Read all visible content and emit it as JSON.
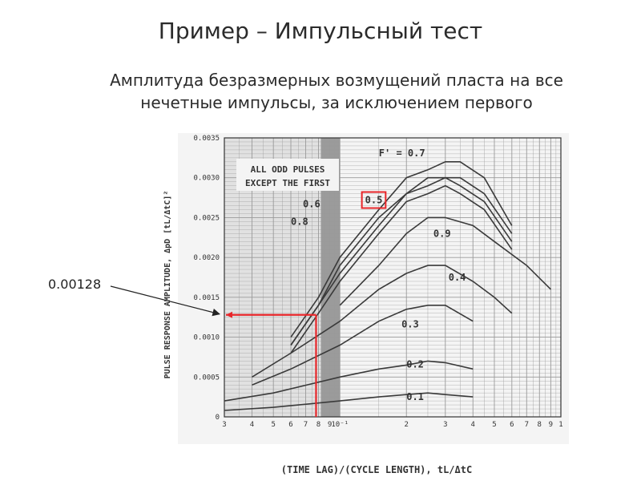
{
  "slide": {
    "title": "Пример – Импульсный тест",
    "subtitle_line1": "Амплитуда безразмерных возмущений пласта на все",
    "subtitle_line2": "нечетные импульсы, за исключением первого"
  },
  "chart_data": {
    "type": "line",
    "x_scale": "log",
    "xlim": [
      0.03,
      1.0
    ],
    "ylim": [
      0,
      0.0035
    ],
    "grid": true,
    "xlabel": "(TIME LAG)/(CYCLE LENGTH), tL/ΔtC",
    "ylabel": "PULSE RESPONSE AMPLITUDE, ΔpD [tL/ΔtC]²",
    "x_tick_labels": [
      "3",
      "4",
      "5",
      "6",
      "7",
      "8",
      "9",
      "10⁻¹",
      "2",
      "3",
      "4",
      "5",
      "6",
      "7",
      "8",
      "9",
      "1"
    ],
    "y_tick_labels": [
      "0",
      "0.0005",
      "0.0010",
      "0.0015",
      "0.0020",
      "0.0025",
      "0.0030",
      "0.0035"
    ],
    "inset_label_line1": "ALL ODD PULSES",
    "inset_label_line2": "EXCEPT THE FIRST",
    "series": [
      {
        "name": "F' = 0.7",
        "x": [
          0.06,
          0.08,
          0.1,
          0.15,
          0.2,
          0.25,
          0.3,
          0.35,
          0.45,
          0.6
        ],
        "y": [
          0.001,
          0.0015,
          0.002,
          0.0026,
          0.003,
          0.0031,
          0.0032,
          0.0032,
          0.003,
          0.0024
        ]
      },
      {
        "name": "0.6",
        "x": [
          0.06,
          0.08,
          0.1,
          0.15,
          0.2,
          0.25,
          0.3,
          0.35,
          0.45,
          0.6
        ],
        "y": [
          0.0009,
          0.0014,
          0.0019,
          0.0025,
          0.0028,
          0.003,
          0.003,
          0.003,
          0.0028,
          0.0023
        ]
      },
      {
        "name": "0.5",
        "x": [
          0.06,
          0.08,
          0.1,
          0.15,
          0.2,
          0.25,
          0.3,
          0.35,
          0.45,
          0.6
        ],
        "y": [
          0.0009,
          0.0014,
          0.0018,
          0.0024,
          0.0028,
          0.0029,
          0.003,
          0.0029,
          0.0027,
          0.0022
        ]
      },
      {
        "name": "0.8",
        "x": [
          0.06,
          0.08,
          0.1,
          0.15,
          0.2,
          0.25,
          0.3,
          0.35,
          0.45,
          0.6
        ],
        "y": [
          0.0008,
          0.0013,
          0.0017,
          0.0023,
          0.0027,
          0.0028,
          0.0029,
          0.0028,
          0.0026,
          0.0021
        ]
      },
      {
        "name": "0.9",
        "x": [
          0.1,
          0.15,
          0.2,
          0.25,
          0.3,
          0.4,
          0.5,
          0.7,
          0.9
        ],
        "y": [
          0.0014,
          0.0019,
          0.0023,
          0.0025,
          0.0025,
          0.0024,
          0.0022,
          0.0019,
          0.0016
        ]
      },
      {
        "name": "0.4",
        "x": [
          0.04,
          0.06,
          0.1,
          0.15,
          0.2,
          0.25,
          0.3,
          0.4,
          0.5,
          0.6
        ],
        "y": [
          0.0005,
          0.0008,
          0.0012,
          0.0016,
          0.0018,
          0.0019,
          0.0019,
          0.0017,
          0.0015,
          0.0013
        ]
      },
      {
        "name": "0.3",
        "x": [
          0.04,
          0.06,
          0.1,
          0.15,
          0.2,
          0.25,
          0.3,
          0.4
        ],
        "y": [
          0.0004,
          0.0006,
          0.0009,
          0.0012,
          0.00135,
          0.0014,
          0.0014,
          0.0012
        ]
      },
      {
        "name": "0.2",
        "x": [
          0.03,
          0.05,
          0.1,
          0.15,
          0.2,
          0.25,
          0.3,
          0.4
        ],
        "y": [
          0.0002,
          0.0003,
          0.0005,
          0.0006,
          0.00065,
          0.0007,
          0.00068,
          0.0006
        ]
      },
      {
        "name": "0.1",
        "x": [
          0.03,
          0.05,
          0.1,
          0.15,
          0.2,
          0.25,
          0.3,
          0.4
        ],
        "y": [
          8e-05,
          0.00012,
          0.0002,
          0.00025,
          0.00028,
          0.0003,
          0.00028,
          0.00025
        ]
      }
    ],
    "highlighted_series": "0.5",
    "annotation": {
      "label": "0.00128",
      "x": 0.078,
      "y": 0.00128,
      "color": "#e8262a"
    }
  },
  "colors": {
    "curve": "#3a3a3a",
    "grid": "#9a9a9a",
    "shade": "#7d7d7d",
    "highlight": "#e8262a"
  }
}
